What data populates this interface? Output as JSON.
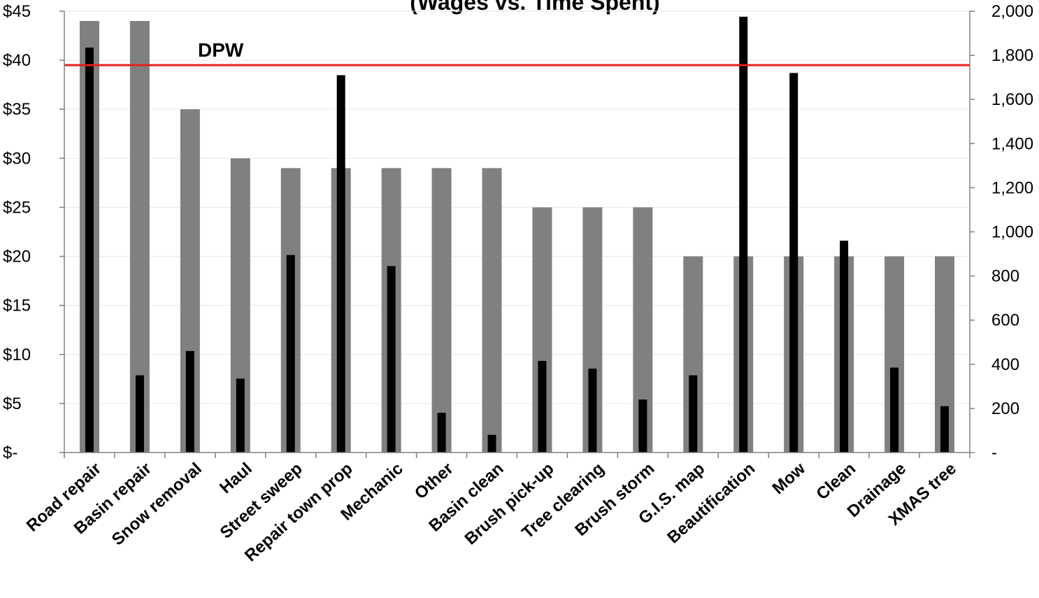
{
  "chart_data": {
    "type": "bar",
    "title": "(Wages vs. Time Spent)",
    "categories": [
      "Road repair",
      "Basin repair",
      "Snow removal",
      "Haul",
      "Street sweep",
      "Repair town prop",
      "Mechanic",
      "Other",
      "Basin clean",
      "Brush pick-up",
      "Tree clearing",
      "Brush storm",
      "G.I.S. map",
      "Beautification",
      "Mow",
      "Clean",
      "Drainage",
      "XMAS tree"
    ],
    "series": [
      {
        "axis": "left",
        "color": "#808080",
        "values": [
          44,
          44,
          35,
          30,
          29,
          29,
          29,
          29,
          29,
          25,
          25,
          25,
          20,
          20,
          20,
          20,
          20,
          20
        ]
      },
      {
        "axis": "right",
        "color": "#000000",
        "values": [
          1835,
          350,
          460,
          335,
          895,
          1710,
          845,
          180,
          80,
          415,
          380,
          240,
          350,
          1975,
          1720,
          960,
          385,
          210
        ]
      }
    ],
    "y_left": {
      "min": 0,
      "max": 45,
      "step": 5,
      "ticks": [
        "$-",
        "$5",
        "$10",
        "$15",
        "$20",
        "$25",
        "$30",
        "$35",
        "$40",
        "$45"
      ]
    },
    "y_right": {
      "min": 0,
      "max": 2000,
      "step": 200,
      "ticks": [
        "-",
        "200",
        "400",
        "600",
        "800",
        "1,000",
        "1,200",
        "1,400",
        "1,600",
        "1,800",
        "2,000"
      ]
    },
    "reference_line": {
      "label": "DPW",
      "value_left": 39.5,
      "color": "#e3201b"
    },
    "grid": true,
    "legend": "none"
  }
}
